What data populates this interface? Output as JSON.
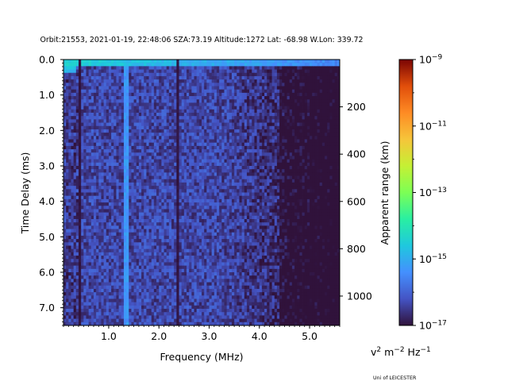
{
  "chart_data": {
    "type": "heatmap",
    "title": "Orbit:21553, 2021-01-19, 22:48:06 SZA:73.19 Altitude:1272 Lat: -68.98 W.Lon: 339.72",
    "xlabel": "Frequency (MHz)",
    "ylabel": "Time Delay (ms)",
    "y2label": "Apparent range (km)",
    "xlim": [
      0.1,
      5.6
    ],
    "ylim": [
      7.5,
      0.0
    ],
    "x_ticks": [
      {
        "value": 1.0,
        "label": "1.0"
      },
      {
        "value": 2.0,
        "label": "2.0"
      },
      {
        "value": 3.0,
        "label": "3.0"
      },
      {
        "value": 4.0,
        "label": "4.0"
      },
      {
        "value": 5.0,
        "label": "5.0"
      }
    ],
    "y_ticks": [
      {
        "value": 0.0,
        "label": "0.0"
      },
      {
        "value": 1.0,
        "label": "1.0"
      },
      {
        "value": 2.0,
        "label": "2.0"
      },
      {
        "value": 3.0,
        "label": "3.0"
      },
      {
        "value": 4.0,
        "label": "4.0"
      },
      {
        "value": 5.0,
        "label": "5.0"
      },
      {
        "value": 6.0,
        "label": "6.0"
      },
      {
        "value": 7.0,
        "label": "7.0"
      }
    ],
    "y2_ticks": [
      {
        "value": 200,
        "label": "200"
      },
      {
        "value": 400,
        "label": "400"
      },
      {
        "value": 600,
        "label": "600"
      },
      {
        "value": 800,
        "label": "800"
      },
      {
        "value": 1000,
        "label": "1000"
      }
    ],
    "km_per_ms": 149.9,
    "colorbar": {
      "colormap": "turbo",
      "log_min": -17,
      "log_max": -9,
      "ticks": [
        {
          "exp": -9,
          "label": "10",
          "sup": "−9"
        },
        {
          "exp": -11,
          "label": "10",
          "sup": "−11"
        },
        {
          "exp": -13,
          "label": "10",
          "sup": "−13"
        },
        {
          "exp": -15,
          "label": "10",
          "sup": "−15"
        },
        {
          "exp": -17,
          "label": "10",
          "sup": "−17"
        }
      ],
      "units": {
        "v": "v",
        "v_sup": "2",
        "m": " m",
        "m_sup": "−2",
        "hz": " Hz",
        "hz_sup": "−1"
      }
    },
    "heatmap": {
      "freq_range": [
        0.1,
        5.6
      ],
      "delay_range": [
        0.0,
        7.5
      ],
      "n_freq": 110,
      "n_delay": 80,
      "note": "Background noise log10 power ~ -16.5 (low freq) decreasing to ~ -17 above 4.5 MHz; strong echo band at 0-0.2 ms (~ -14); dark vertical lines at 0.4 and 2.4 MHz; bright vertical line at 1.35 MHz."
    },
    "credit": "Uni of LEICESTER"
  }
}
